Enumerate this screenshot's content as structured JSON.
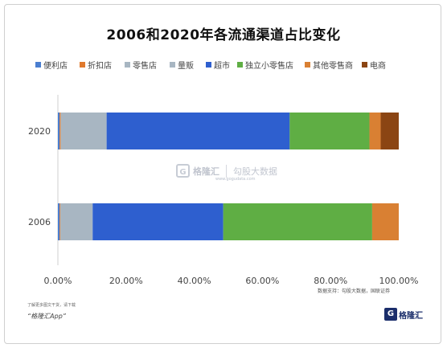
{
  "chart_data": {
    "type": "bar",
    "orientation": "horizontal",
    "stacked": true,
    "title": "2006和2020年各流通渠道占比变化",
    "categories": [
      "2020",
      "2006"
    ],
    "series": [
      {
        "name": "便利店",
        "color": "#4a7ed0",
        "values": [
          0.5,
          0.5
        ]
      },
      {
        "name": "折扣店",
        "color": "#e07a2e",
        "values": [
          0.3,
          0.2
        ]
      },
      {
        "name": "零售店",
        "color": "#a8b6c2",
        "values": [
          13.5,
          9.5
        ]
      },
      {
        "name": "量贩",
        "color": "#a8b6c2",
        "values": [
          0.0,
          0.0
        ]
      },
      {
        "name": "超市",
        "color": "#2e5fcf",
        "values": [
          53.7,
          38.3
        ]
      },
      {
        "name": "独立小零售店",
        "color": "#5fae44",
        "values": [
          23.4,
          43.7
        ]
      },
      {
        "name": "其他零售商",
        "color": "#d98033",
        "values": [
          3.3,
          7.8
        ]
      },
      {
        "name": "电商",
        "color": "#8b4513",
        "values": [
          5.3,
          0.0
        ]
      }
    ],
    "xlim": [
      0,
      100
    ],
    "x_ticks": [
      "0.00%",
      "20.00%",
      "40.00%",
      "60.00%",
      "80.00%",
      "100.00%"
    ],
    "legend_position": "top"
  },
  "watermark": {
    "brand": "格隆汇",
    "text": "勾股大数据",
    "url": "www.gogudata.com"
  },
  "footer": {
    "source": "数据支持：勾股大数据，国联证券",
    "note": "了解更多图文干货，请下载",
    "app": "“格隆汇App”",
    "brand": "格隆汇"
  }
}
